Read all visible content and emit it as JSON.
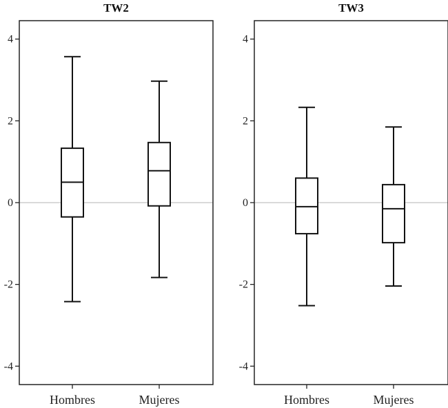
{
  "chart_data": [
    {
      "type": "box",
      "title": "TW2",
      "categories": [
        "Hombres",
        "Mujeres"
      ],
      "ylim": [
        -4.45,
        4.45
      ],
      "yticks": [
        -4,
        -2,
        0,
        2,
        4
      ],
      "yticklabels": [
        "-4",
        "-2",
        "0",
        "2",
        "4"
      ],
      "reference_line": 0,
      "boxes": [
        {
          "category": "Hombres",
          "min": -2.42,
          "q1": -0.35,
          "median": 0.5,
          "q3": 1.33,
          "max": 3.57
        },
        {
          "category": "Mujeres",
          "min": -1.83,
          "q1": -0.08,
          "median": 0.78,
          "q3": 1.47,
          "max": 2.97
        }
      ]
    },
    {
      "type": "box",
      "title": "TW3",
      "categories": [
        "Hombres",
        "Mujeres"
      ],
      "ylim": [
        -4.45,
        4.45
      ],
      "yticks": [
        -4,
        -2,
        0,
        2,
        4
      ],
      "yticklabels": [
        "-4",
        "-2",
        "0",
        "2",
        "4"
      ],
      "reference_line": 0,
      "boxes": [
        {
          "category": "Hombres",
          "min": -2.52,
          "q1": -0.76,
          "median": -0.1,
          "q3": 0.6,
          "max": 2.33
        },
        {
          "category": "Mujeres",
          "min": -2.04,
          "q1": -0.98,
          "median": -0.15,
          "q3": 0.44,
          "max": 1.85
        }
      ]
    }
  ],
  "colors": {
    "axis": "#222222",
    "box_stroke": "#111111",
    "zero_line": "#b3b3b3",
    "background": "#ffffff"
  }
}
